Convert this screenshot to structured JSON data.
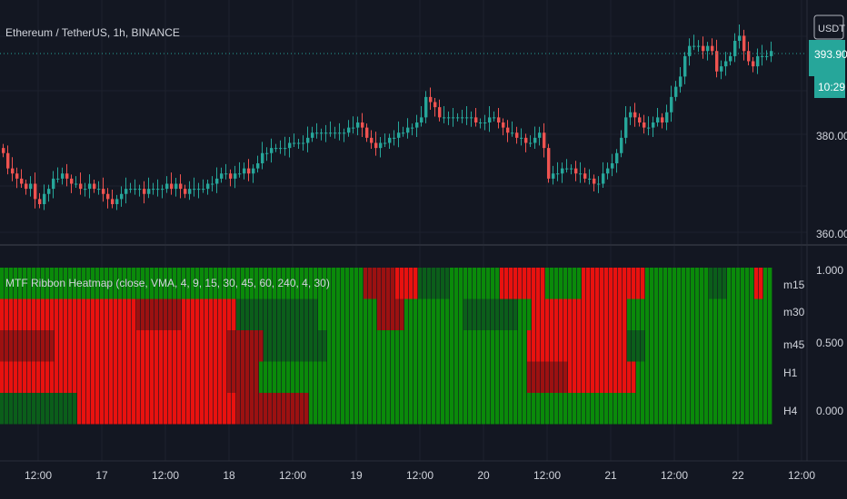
{
  "header": {
    "symbol_title": "Ethereum / TetherUS, 1h, BINANCE"
  },
  "price_panel": {
    "currency_badge": "USDT",
    "price_badge": "393.90",
    "countdown_badge": "10:29",
    "colors": {
      "up": "#26a69a",
      "down": "#ef5350",
      "badge_bg": "#26a69a"
    }
  },
  "indicator_panel": {
    "title": "MTF Ribbon Heatmap (close, VMA, 4, 9, 15, 30, 45, 60, 240, 4, 30)",
    "row_labels": [
      "m15",
      "m30",
      "m45",
      "H1",
      "H4"
    ],
    "colors": {
      "green": "#0a8a0a",
      "dark_green": "#0b5e1a",
      "red": "#e8120f",
      "dark_red": "#9c1111"
    }
  },
  "chart_data": [
    {
      "type": "candlestick",
      "title": "Ethereum / TetherUS, 1h, BINANCE",
      "x_tick_labels": [
        "12:00",
        "17",
        "12:00",
        "18",
        "12:00",
        "19",
        "12:00",
        "20",
        "12:00",
        "21",
        "12:00",
        "22",
        "12:00"
      ],
      "y_tick_labels": [
        "380.00",
        "360.00"
      ],
      "ylim": [
        356,
        404
      ],
      "last_price": 393.9,
      "close": [
        374,
        371,
        370,
        369,
        368,
        367,
        368,
        365,
        364,
        366,
        367,
        369,
        369,
        370,
        369,
        368,
        368,
        367,
        367,
        368,
        367,
        367,
        366,
        365,
        364,
        365,
        366,
        367,
        367,
        367,
        367,
        366,
        367,
        367,
        367,
        367,
        368,
        367,
        368,
        367,
        366,
        367,
        367,
        367,
        367,
        368,
        368,
        369,
        370,
        370,
        369,
        370,
        370,
        371,
        370,
        371,
        372,
        374,
        374,
        375,
        375,
        375,
        375,
        376,
        376,
        376,
        376,
        377,
        378,
        378,
        378,
        378,
        378,
        378,
        378,
        378,
        379,
        379,
        380,
        379,
        377,
        376,
        375,
        376,
        376,
        377,
        377,
        378,
        378,
        379,
        379,
        380,
        381,
        385,
        384,
        383,
        381,
        381,
        381,
        381,
        381,
        381,
        381,
        381,
        380,
        380,
        380,
        381,
        381,
        380,
        379,
        378,
        378,
        377,
        377,
        376,
        376,
        377,
        378,
        375,
        369,
        370,
        370,
        371,
        371,
        371,
        370,
        370,
        369,
        369,
        368,
        368,
        370,
        371,
        372,
        374,
        377,
        381,
        382,
        381,
        380,
        379,
        379,
        380,
        381,
        380,
        382,
        385,
        387,
        389,
        393,
        395,
        395,
        395,
        394,
        395,
        394,
        390,
        391,
        392,
        393,
        396,
        397,
        394,
        392,
        391,
        393,
        393,
        393,
        394
      ]
    },
    {
      "type": "heatmap",
      "title": "MTF Ribbon Heatmap (close, VMA, 4, 9, 15, 30, 45, 60, 240, 4, 30)",
      "rows": [
        "m15",
        "m30",
        "m45",
        "H1",
        "H4"
      ],
      "y_tick_labels": [
        "1.000",
        "0.500",
        "0.000"
      ],
      "ylim": [
        0,
        1
      ],
      "state_legend": {
        "G": "green",
        "g": "dark green",
        "R": "red",
        "r": "dark red"
      },
      "segments": [
        [
          [
            0,
            80,
            "G"
          ],
          [
            80,
            87,
            "r"
          ],
          [
            87,
            92,
            "R"
          ],
          [
            92,
            99,
            "g"
          ],
          [
            99,
            110,
            "G"
          ],
          [
            110,
            120,
            "R"
          ],
          [
            120,
            128,
            "G"
          ],
          [
            128,
            136,
            "R"
          ],
          [
            136,
            142,
            "R"
          ],
          [
            142,
            156,
            "G"
          ],
          [
            156,
            160,
            "g"
          ],
          [
            160,
            166,
            "G"
          ],
          [
            166,
            168,
            "R"
          ],
          [
            168,
            170,
            "G"
          ]
        ],
        [
          [
            0,
            30,
            "R"
          ],
          [
            30,
            40,
            "r"
          ],
          [
            40,
            52,
            "R"
          ],
          [
            52,
            70,
            "g"
          ],
          [
            70,
            83,
            "G"
          ],
          [
            83,
            89,
            "r"
          ],
          [
            89,
            102,
            "G"
          ],
          [
            102,
            114,
            "g"
          ],
          [
            114,
            117,
            "G"
          ],
          [
            117,
            138,
            "R"
          ],
          [
            138,
            156,
            "G"
          ],
          [
            156,
            170,
            "G"
          ]
        ],
        [
          [
            0,
            12,
            "r"
          ],
          [
            12,
            50,
            "R"
          ],
          [
            50,
            58,
            "r"
          ],
          [
            58,
            72,
            "g"
          ],
          [
            72,
            116,
            "G"
          ],
          [
            116,
            138,
            "R"
          ],
          [
            138,
            142,
            "g"
          ],
          [
            142,
            170,
            "G"
          ]
        ],
        [
          [
            0,
            50,
            "R"
          ],
          [
            50,
            57,
            "r"
          ],
          [
            57,
            116,
            "G"
          ],
          [
            116,
            125,
            "r"
          ],
          [
            125,
            140,
            "R"
          ],
          [
            140,
            170,
            "G"
          ]
        ],
        [
          [
            0,
            17,
            "g"
          ],
          [
            17,
            52,
            "R"
          ],
          [
            52,
            68,
            "r"
          ],
          [
            68,
            170,
            "G"
          ]
        ]
      ]
    }
  ]
}
